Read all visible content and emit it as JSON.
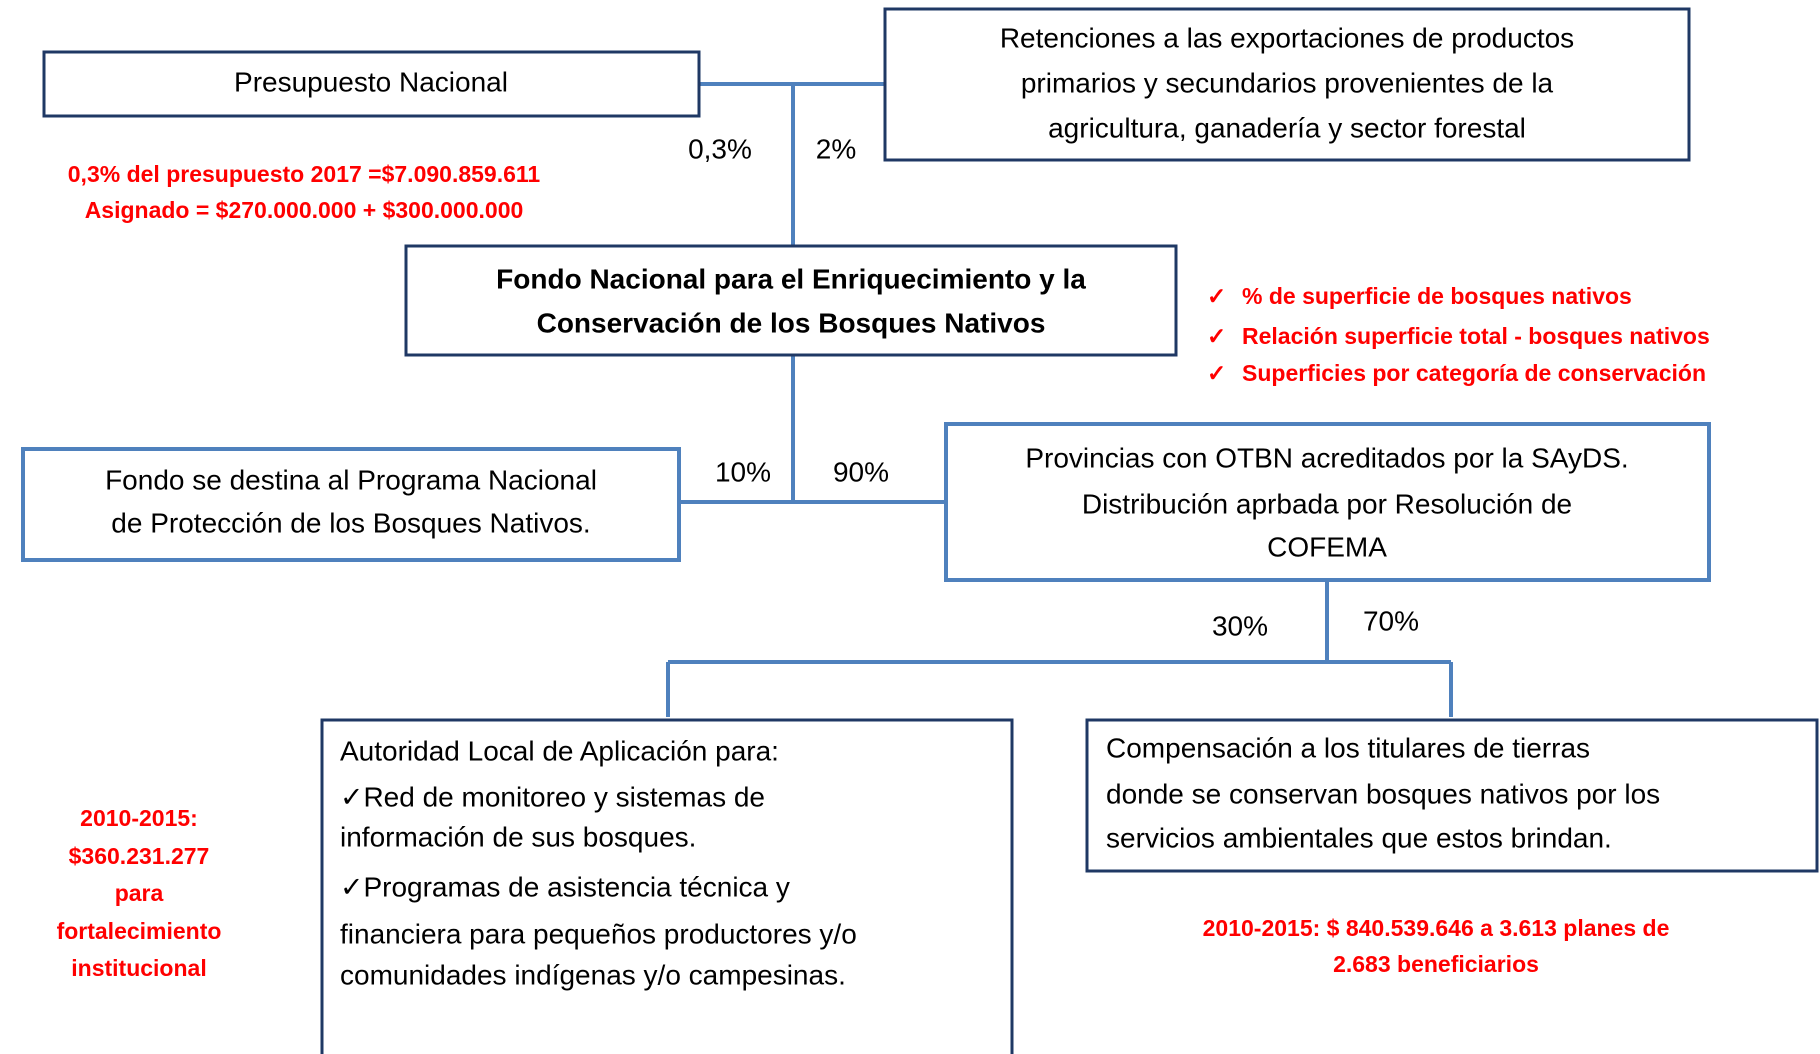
{
  "nodes": [
    {
      "lines": [
        "Presupuesto Nacional"
      ]
    },
    {
      "lines": [
        "Retenciones a las exportaciones de productos",
        "primarios y secundarios provenientes de la",
        "agricultura, ganadería y sector forestal"
      ]
    },
    {
      "lines": [
        "Fondo Nacional para el Enriquecimiento y la",
        "Conservación de los Bosques Nativos"
      ]
    },
    {
      "lines": [
        "Fondo se destina al Programa Nacional",
        "de Protección de los Bosques Nativos."
      ]
    },
    {
      "lines": [
        "Provincias con OTBN acreditados por la SAyDS.",
        "Distribución aprbada por Resolución de",
        "COFEMA"
      ]
    },
    {
      "lines": [
        "Autoridad Local de Aplicación para:",
        "✓Red de monitoreo y sistemas de",
        "información de sus bosques.",
        "✓Programas de asistencia técnica y",
        "financiera para pequeños productores y/o",
        "comunidades indígenas y/o campesinas."
      ]
    },
    {
      "lines": [
        "Compensación a los titulares de tierras",
        "donde se conservan bosques nativos por los",
        "servicios ambientales que estos brindan."
      ]
    }
  ],
  "edge_labels": [
    "0,3%",
    "2%",
    "10%",
    "90%",
    "30%",
    "70%"
  ],
  "annotations": {
    "budget": [
      "0,3% del presupuesto 2017 =$7.090.859.611",
      "Asignado = $270.000.000 + $300.000.000"
    ],
    "criteria": [
      "% de superficie de bosques nativos",
      "Relación superficie total - bosques nativos",
      "Superficies por categoría de conservación"
    ],
    "institutional": [
      "2010-2015:",
      "$360.231.277",
      "para",
      "fortalecimiento",
      "institucional"
    ],
    "compensation": [
      "2010-2015:  $ 840.539.646 a 3.613 planes de",
      "2.683 beneficiarios"
    ]
  }
}
